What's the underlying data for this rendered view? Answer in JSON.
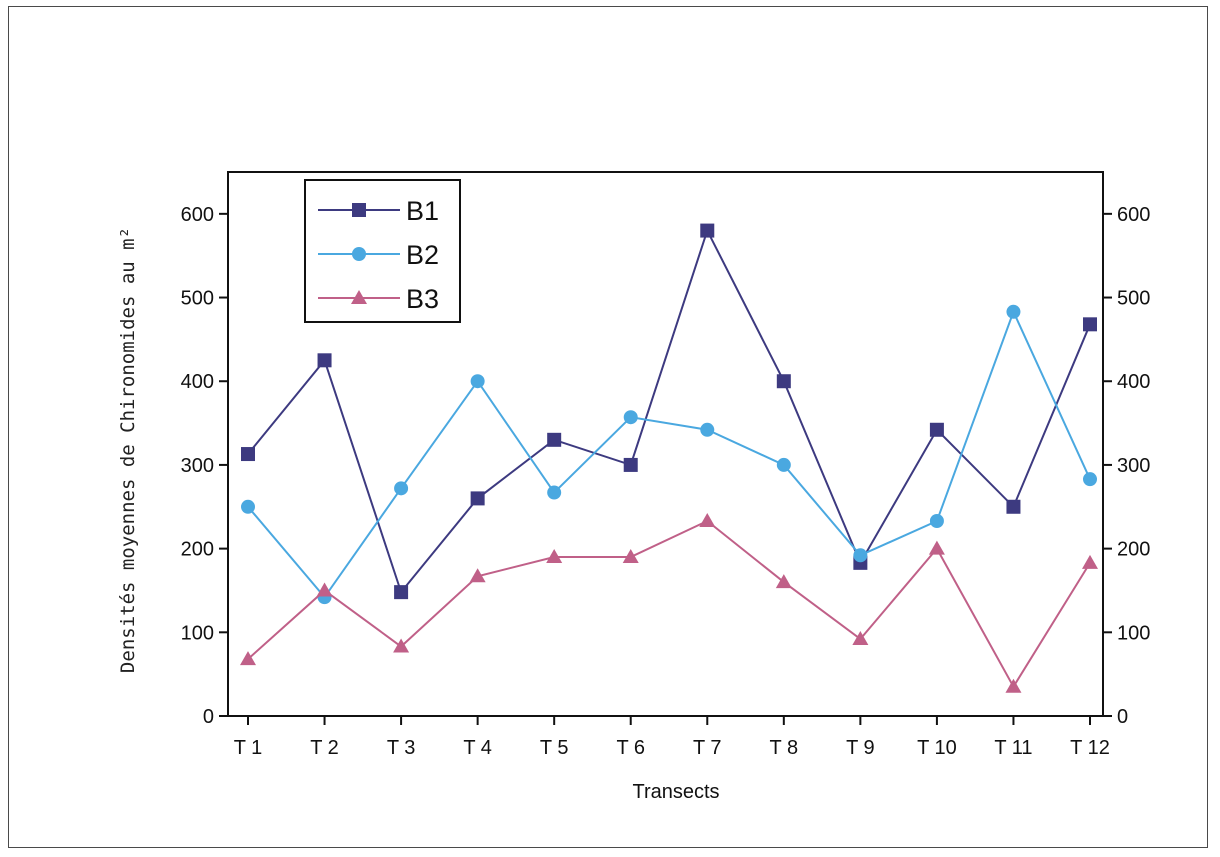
{
  "chart_data": {
    "type": "line",
    "title": "",
    "xlabel": "Transects",
    "ylabel": "Densités moyennes de Chironomides au m²",
    "categories": [
      "T 1",
      "T 2",
      "T 3",
      "T 4",
      "T 5",
      "T 6",
      "T 7",
      "T 8",
      "T 9",
      "T 10",
      "T 11",
      "T 12"
    ],
    "ylim": [
      0,
      650
    ],
    "yticks": [
      0,
      100,
      200,
      300,
      400,
      500,
      600
    ],
    "grid": false,
    "right_axis_mirrored": true,
    "legend_position": "top-left",
    "series": [
      {
        "name": "B1",
        "color": "#3d3a80",
        "marker": "square",
        "values": [
          313,
          425,
          148,
          260,
          330,
          300,
          580,
          400,
          183,
          342,
          250,
          468
        ]
      },
      {
        "name": "B2",
        "color": "#4aa8e0",
        "marker": "circle",
        "values": [
          250,
          142,
          272,
          400,
          267,
          357,
          342,
          300,
          192,
          233,
          483,
          283
        ]
      },
      {
        "name": "B3",
        "color": "#c06088",
        "marker": "triangle",
        "values": [
          68,
          150,
          83,
          167,
          190,
          190,
          233,
          160,
          92,
          200,
          35,
          183
        ]
      }
    ]
  }
}
